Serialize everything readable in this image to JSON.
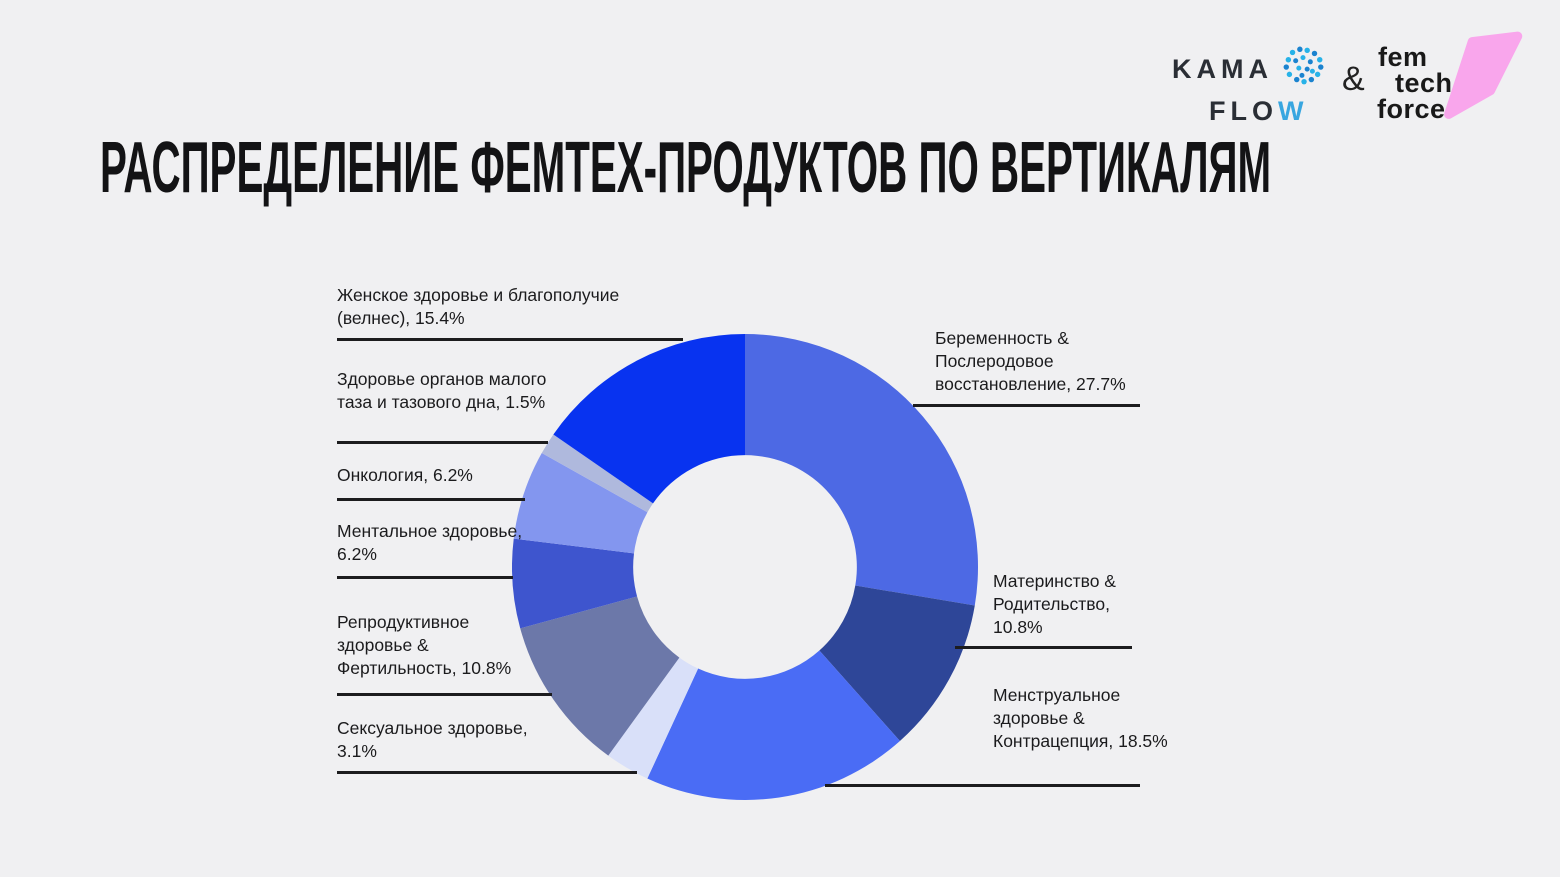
{
  "page": {
    "background_color": "#f0f0f2",
    "accent_text_color": "#1b1b1d"
  },
  "header": {
    "kama_flow_logo": {
      "line1": "KAMA",
      "line2_dark": "FLO",
      "line2_accent": "W",
      "accent_color": "#38a6e0",
      "brain_icon_colors": [
        "#27b2e8",
        "#1b83cf"
      ]
    },
    "separator": "&",
    "femtech_logo": {
      "word1": "fem",
      "word2": "tech",
      "word3": "force",
      "shape_color": "#f9a6ec"
    }
  },
  "title": "РАСПРЕДЕЛЕНИЕ ФЕМТЕХ-ПРОДУКТОВ ПО ВЕРТИКАЛЯМ",
  "chart_data": {
    "type": "pie",
    "subtype": "donut",
    "title": "Распределение фемтех-продуктов по вертикалям",
    "unit": "%",
    "start_angle_deg": 0,
    "direction": "clockwise",
    "inner_radius_ratio": 0.48,
    "legend_position": "callouts",
    "categories": [
      "Беременность & Послеродовое восстановление",
      "Материнство & Родительство",
      "Менструальное здоровье & Контрацепция",
      "Сексуальное здоровье",
      "Репродуктивное здоровье & Фертильность",
      "Ментальное здоровье",
      "Онкология",
      "Здоровье органов малого таза и тазового дна",
      "Женское здоровье и благополучие (велнес)"
    ],
    "values": [
      27.7,
      10.8,
      18.5,
      3.1,
      10.8,
      6.2,
      6.2,
      1.5,
      15.4
    ],
    "colors": [
      "#4d69e4",
      "#2e4698",
      "#4a6cf5",
      "#d9e0f9",
      "#6c78a9",
      "#3e55ce",
      "#8396ef",
      "#afb9dd",
      "#0833f0"
    ]
  },
  "callouts": [
    {
      "text": "Беременность &\nПослеродовое\nвосстановление, 27.7%"
    },
    {
      "text": "Материнство &\nРодительство,\n10.8%"
    },
    {
      "text": "Менструальное\nздоровье &\nКонтрацепция, 18.5%"
    },
    {
      "text": "Сексуальное здоровье,\n3.1%"
    },
    {
      "text": "Репродуктивное\nздоровье &\nФертильность, 10.8%"
    },
    {
      "text": "Ментальное здоровье,\n6.2%"
    },
    {
      "text": "Онкология, 6.2%"
    },
    {
      "text": "Здоровье органов малого\nтаза и тазового дна, 1.5%"
    },
    {
      "text": "Женское здоровье и благополучие\n(велнес), 15.4%"
    }
  ]
}
